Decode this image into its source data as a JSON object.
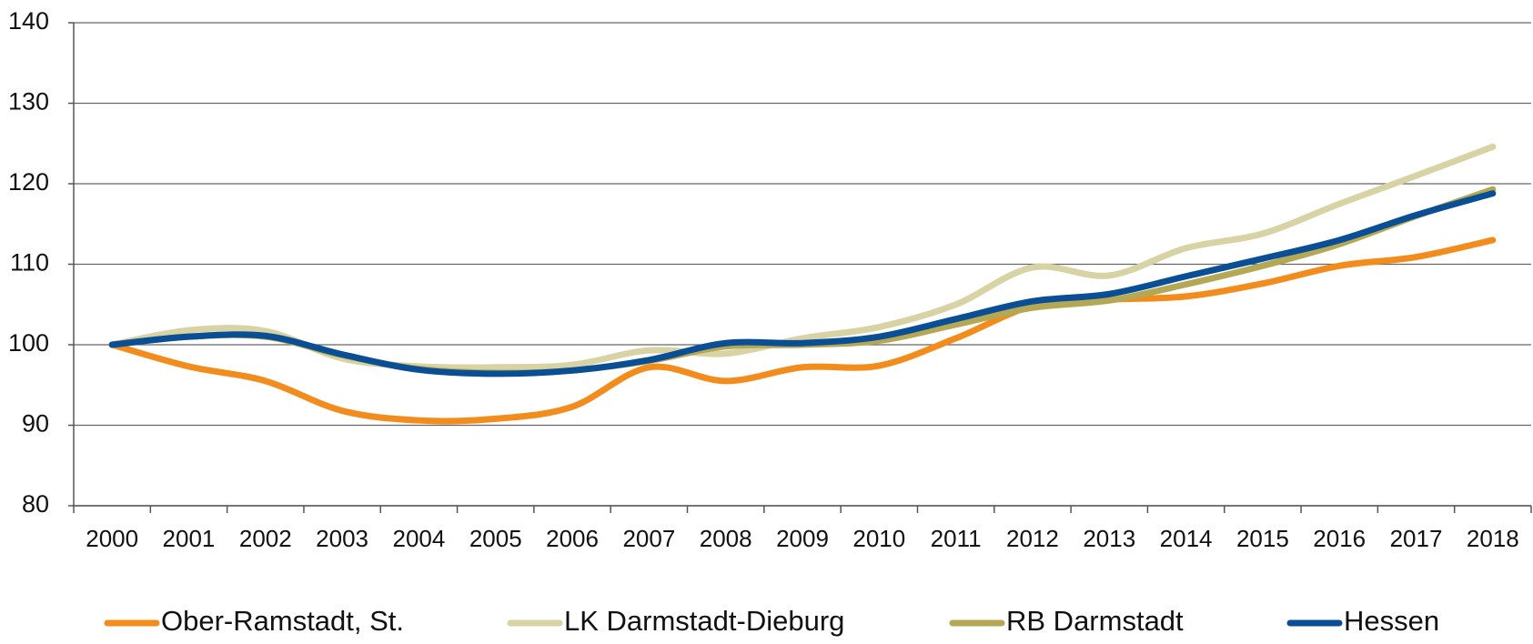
{
  "chart_data": {
    "type": "line",
    "categories": [
      "2000",
      "2001",
      "2002",
      "2003",
      "2004",
      "2005",
      "2006",
      "2007",
      "2008",
      "2009",
      "2010",
      "2011",
      "2012",
      "2013",
      "2014",
      "2015",
      "2016",
      "2017",
      "2018"
    ],
    "series": [
      {
        "name": "Ober-Ramstadt, St.",
        "color": "#f28c1c",
        "values": [
          100,
          97.3,
          95.5,
          91.8,
          90.6,
          90.8,
          92.3,
          97.2,
          95.5,
          97.2,
          97.4,
          100.8,
          104.8,
          105.6,
          106,
          107.6,
          109.8,
          110.9,
          113
        ]
      },
      {
        "name": "LK Darmstadt-Dieburg",
        "color": "#d8d3a4",
        "values": [
          100,
          101.8,
          101.7,
          98.3,
          97.3,
          97.2,
          97.5,
          99.3,
          98.9,
          100.8,
          102.2,
          105,
          109.6,
          108.6,
          112,
          113.8,
          117.5,
          121,
          124.6
        ]
      },
      {
        "name": "RB Darmstadt",
        "color": "#b4a855",
        "values": [
          100,
          101,
          101,
          98.7,
          97,
          96.5,
          96.8,
          98,
          99.8,
          100,
          100.5,
          102.5,
          104.6,
          105.5,
          107.5,
          109.8,
          112.5,
          116,
          119.3
        ]
      },
      {
        "name": "Hessen",
        "color": "#0a4f95",
        "values": [
          100,
          101,
          101.1,
          98.8,
          96.9,
          96.4,
          96.8,
          98.1,
          100.2,
          100.2,
          101,
          103.2,
          105.4,
          106.3,
          108.5,
          110.7,
          113,
          116.1,
          118.8
        ]
      }
    ],
    "ylim": [
      80,
      140
    ],
    "yticks": [
      80,
      90,
      100,
      110,
      120,
      130,
      140
    ],
    "grid": true,
    "legend": "bottom"
  }
}
